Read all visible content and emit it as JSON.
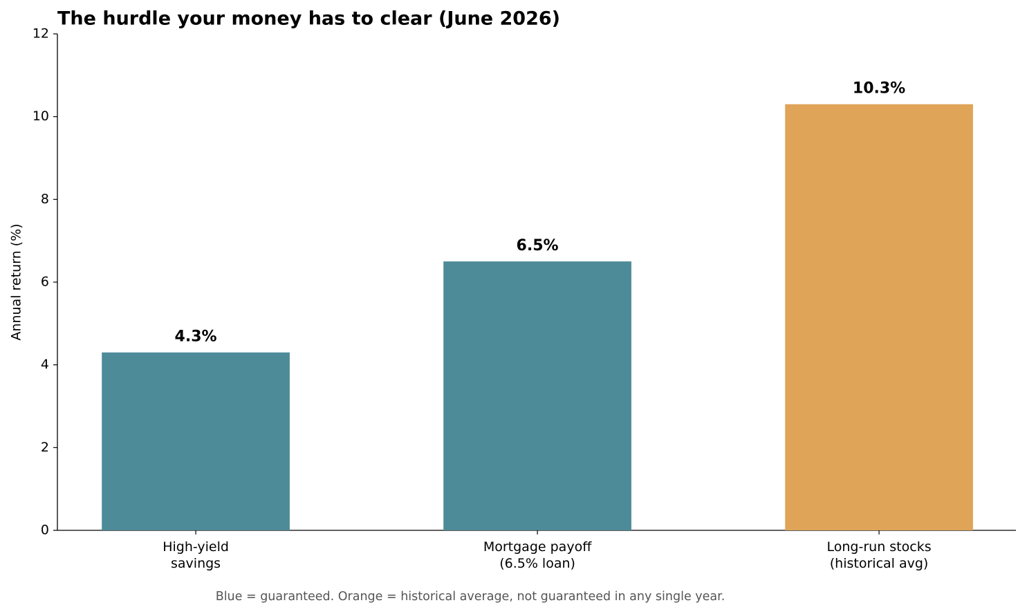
{
  "chart_data": {
    "type": "bar",
    "title": "The hurdle your money has to clear (June 2026)",
    "ylabel": "Annual return (%)",
    "categories": [
      "High-yield\nsavings",
      "Mortgage payoff\n(6.5% loan)",
      "Long-run stocks\n(historical avg)"
    ],
    "values": [
      4.3,
      6.5,
      10.3
    ],
    "value_labels": [
      "4.3%",
      "6.5%",
      "10.3%"
    ],
    "colors": [
      "#4d8b99",
      "#4d8b99",
      "#dfa458"
    ],
    "ylim": [
      0,
      12
    ],
    "yticks": [
      0,
      2,
      4,
      6,
      8,
      10,
      12
    ],
    "grid": false,
    "note": "Blue = guaranteed.  Orange = historical average, not guaranteed in any single year."
  }
}
